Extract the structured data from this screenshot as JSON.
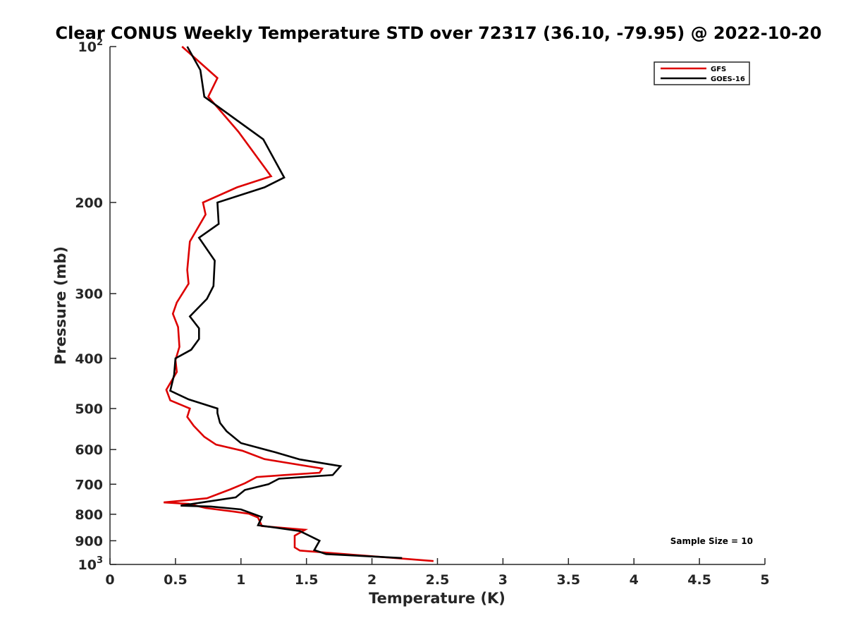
{
  "chart_data": {
    "type": "line",
    "title": "Clear CONUS Weekly Temperature STD over 72317 (36.10, -79.95) @ 2022-10-20",
    "xlabel": "Temperature (K)",
    "ylabel": "Pressure (mb)",
    "xlim": [
      0,
      5
    ],
    "ylim": [
      100,
      1000
    ],
    "yscale": "log",
    "y_reversed": true,
    "grid": false,
    "x_ticks": [
      0,
      0.5,
      1,
      1.5,
      2,
      2.5,
      3,
      3.5,
      4,
      4.5,
      5
    ],
    "x_tick_labels": [
      "0",
      "0.5",
      "1",
      "1.5",
      "2",
      "2.5",
      "3",
      "3.5",
      "4",
      "4.5",
      "5"
    ],
    "y_ticks": [
      100,
      200,
      300,
      400,
      500,
      600,
      700,
      800,
      900,
      1000
    ],
    "y_tick_labels": [
      {
        "base": "10",
        "exp": "2"
      },
      {
        "base": "200",
        "exp": ""
      },
      {
        "base": "300",
        "exp": ""
      },
      {
        "base": "400",
        "exp": ""
      },
      {
        "base": "500",
        "exp": ""
      },
      {
        "base": "600",
        "exp": ""
      },
      {
        "base": "700",
        "exp": ""
      },
      {
        "base": "800",
        "exp": ""
      },
      {
        "base": "900",
        "exp": ""
      },
      {
        "base": "10",
        "exp": "3"
      }
    ],
    "legend_position": "top-right",
    "annotation": "Sample Size = 10",
    "series": [
      {
        "name": "GFS",
        "color": "#dd0000",
        "points": [
          [
            0.55,
            100
          ],
          [
            0.82,
            115
          ],
          [
            0.75,
            125
          ],
          [
            0.98,
            146
          ],
          [
            1.23,
            178
          ],
          [
            0.97,
            187
          ],
          [
            0.71,
            200
          ],
          [
            0.73,
            211
          ],
          [
            0.61,
            238
          ],
          [
            0.59,
            270
          ],
          [
            0.6,
            287
          ],
          [
            0.51,
            312
          ],
          [
            0.48,
            328
          ],
          [
            0.52,
            348
          ],
          [
            0.53,
            380
          ],
          [
            0.5,
            403
          ],
          [
            0.51,
            425
          ],
          [
            0.43,
            460
          ],
          [
            0.46,
            482
          ],
          [
            0.61,
            500
          ],
          [
            0.59,
            519
          ],
          [
            0.64,
            540
          ],
          [
            0.72,
            567
          ],
          [
            0.81,
            587
          ],
          [
            1.01,
            603
          ],
          [
            1.18,
            626
          ],
          [
            1.62,
            653
          ],
          [
            1.6,
            665
          ],
          [
            1.33,
            672
          ],
          [
            1.12,
            678
          ],
          [
            1.03,
            697
          ],
          [
            0.92,
            716
          ],
          [
            0.74,
            745
          ],
          [
            0.41,
            759
          ],
          [
            0.6,
            764
          ],
          [
            0.73,
            778
          ],
          [
            0.94,
            790
          ],
          [
            1.06,
            798
          ],
          [
            1.13,
            812
          ],
          [
            1.16,
            843
          ],
          [
            1.49,
            857
          ],
          [
            1.41,
            880
          ],
          [
            1.41,
            927
          ],
          [
            1.45,
            940
          ],
          [
            2.47,
            985
          ]
        ]
      },
      {
        "name": "GOES-16",
        "color": "#000000",
        "points": [
          [
            0.59,
            100
          ],
          [
            0.69,
            111
          ],
          [
            0.72,
            125
          ],
          [
            1.17,
            151
          ],
          [
            1.33,
            179
          ],
          [
            1.18,
            187
          ],
          [
            0.82,
            200
          ],
          [
            0.83,
            220
          ],
          [
            0.68,
            234
          ],
          [
            0.8,
            259
          ],
          [
            0.79,
            290
          ],
          [
            0.74,
            307
          ],
          [
            0.61,
            332
          ],
          [
            0.68,
            350
          ],
          [
            0.68,
            367
          ],
          [
            0.62,
            385
          ],
          [
            0.5,
            400
          ],
          [
            0.49,
            430
          ],
          [
            0.46,
            462
          ],
          [
            0.6,
            480
          ],
          [
            0.82,
            500
          ],
          [
            0.82,
            510
          ],
          [
            0.84,
            533
          ],
          [
            0.89,
            553
          ],
          [
            1.0,
            583
          ],
          [
            1.26,
            607
          ],
          [
            1.45,
            627
          ],
          [
            1.76,
            646
          ],
          [
            1.7,
            672
          ],
          [
            1.29,
            683
          ],
          [
            1.21,
            700
          ],
          [
            1.03,
            718
          ],
          [
            0.96,
            742
          ],
          [
            0.54,
            770
          ],
          [
            0.77,
            773
          ],
          [
            1.0,
            783
          ],
          [
            1.16,
            810
          ],
          [
            1.13,
            840
          ],
          [
            1.45,
            862
          ],
          [
            1.6,
            900
          ],
          [
            1.56,
            938
          ],
          [
            1.65,
            955
          ],
          [
            2.23,
            972
          ]
        ]
      }
    ]
  }
}
